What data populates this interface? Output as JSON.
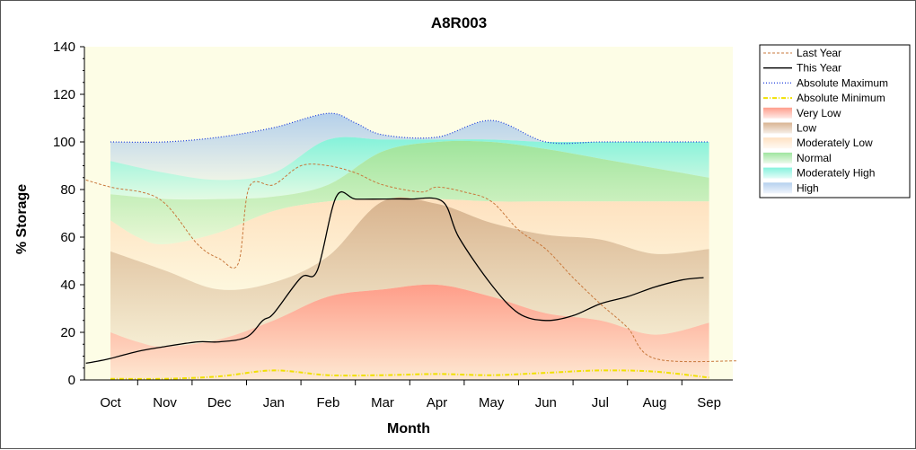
{
  "chart_data": {
    "type": "area",
    "title": "A8R003",
    "xlabel": "Month",
    "ylabel": "% Storage",
    "categories": [
      "Oct",
      "Nov",
      "Dec",
      "Jan",
      "Feb",
      "Mar",
      "Apr",
      "May",
      "Jun",
      "Jul",
      "Aug",
      "Sep"
    ],
    "ylim": [
      0,
      140
    ],
    "yticks": [
      0,
      20,
      40,
      60,
      80,
      100,
      120,
      140
    ],
    "legend_position": "right",
    "background_color": "#fdfde6",
    "bands": [
      {
        "name": "Very Low",
        "color": "#ff8c78",
        "lower": [
          [
            0,
            0
          ],
          [
            11,
            0
          ]
        ],
        "upper": [
          [
            0,
            20
          ],
          [
            0.5,
            16
          ],
          [
            1,
            14
          ],
          [
            2,
            17
          ],
          [
            3,
            25
          ],
          [
            4,
            35
          ],
          [
            5,
            38
          ],
          [
            6,
            40
          ],
          [
            7,
            35
          ],
          [
            8,
            28
          ],
          [
            9,
            25
          ],
          [
            10,
            19
          ],
          [
            11,
            24
          ]
        ]
      },
      {
        "name": "Low",
        "color": "#d2a67e",
        "upper": [
          [
            0,
            54
          ],
          [
            1,
            46
          ],
          [
            2,
            38
          ],
          [
            3,
            41
          ],
          [
            4,
            52
          ],
          [
            5,
            75
          ],
          [
            6,
            74
          ],
          [
            7,
            66
          ],
          [
            8,
            61
          ],
          [
            9,
            59
          ],
          [
            10,
            53
          ],
          [
            11,
            55
          ]
        ]
      },
      {
        "name": "Moderately Low",
        "color": "#ffdcb8",
        "upper": [
          [
            0,
            67
          ],
          [
            0.5,
            60
          ],
          [
            1,
            57
          ],
          [
            2,
            62
          ],
          [
            3,
            71
          ],
          [
            4,
            75
          ],
          [
            5,
            76
          ],
          [
            6,
            76
          ],
          [
            7,
            75
          ],
          [
            8,
            75
          ],
          [
            9,
            75
          ],
          [
            10,
            75
          ],
          [
            11,
            75
          ]
        ]
      },
      {
        "name": "Normal",
        "color": "#8ee08e",
        "upper": [
          [
            0,
            78
          ],
          [
            1,
            76
          ],
          [
            2,
            76
          ],
          [
            3,
            77
          ],
          [
            4,
            82
          ],
          [
            5,
            96
          ],
          [
            6,
            100
          ],
          [
            7,
            100
          ],
          [
            8,
            97
          ],
          [
            9,
            93
          ],
          [
            10,
            89
          ],
          [
            11,
            85
          ]
        ]
      },
      {
        "name": "Moderately High",
        "color": "#6ff0d8",
        "upper": [
          [
            0,
            92
          ],
          [
            1,
            87
          ],
          [
            2,
            84
          ],
          [
            3,
            87
          ],
          [
            4,
            101
          ],
          [
            5,
            101
          ],
          [
            6,
            101
          ],
          [
            7,
            101
          ],
          [
            8,
            100
          ],
          [
            9,
            100
          ],
          [
            10,
            100
          ],
          [
            11,
            100
          ]
        ]
      },
      {
        "name": "High",
        "color": "#a8c8ec",
        "upper": [
          [
            0,
            100
          ],
          [
            1,
            100
          ],
          [
            2,
            102
          ],
          [
            3,
            106
          ],
          [
            4,
            112
          ],
          [
            4.5,
            108
          ],
          [
            5,
            103
          ],
          [
            6,
            102
          ],
          [
            7,
            109
          ],
          [
            8,
            100
          ],
          [
            9,
            100
          ],
          [
            10,
            100
          ],
          [
            11,
            100
          ]
        ]
      }
    ],
    "series": [
      {
        "name": "Last Year",
        "color": "#c8783c",
        "style": "dashed",
        "points": [
          [
            -0.45,
            84
          ],
          [
            0,
            81
          ],
          [
            0.9,
            76
          ],
          [
            1.6,
            57
          ],
          [
            2,
            51
          ],
          [
            2.35,
            49
          ],
          [
            2.55,
            81
          ],
          [
            3,
            82
          ],
          [
            3.5,
            90
          ],
          [
            4,
            90
          ],
          [
            4.5,
            87
          ],
          [
            5,
            82
          ],
          [
            5.7,
            79
          ],
          [
            6,
            81
          ],
          [
            6.5,
            79
          ],
          [
            7,
            75
          ],
          [
            7.5,
            63
          ],
          [
            8,
            55
          ],
          [
            8.5,
            43
          ],
          [
            9,
            32
          ],
          [
            9.5,
            22
          ],
          [
            10,
            9
          ],
          [
            11.5,
            8
          ]
        ]
      },
      {
        "name": "This Year",
        "color": "#000000",
        "style": "solid",
        "points": [
          [
            -0.45,
            7
          ],
          [
            0,
            9
          ],
          [
            0.5,
            12
          ],
          [
            1,
            14
          ],
          [
            1.6,
            16
          ],
          [
            2,
            16
          ],
          [
            2.5,
            18
          ],
          [
            2.8,
            25
          ],
          [
            3,
            28
          ],
          [
            3.5,
            43
          ],
          [
            3.8,
            46
          ],
          [
            4.15,
            77
          ],
          [
            4.5,
            76
          ],
          [
            5,
            76
          ],
          [
            5.5,
            76
          ],
          [
            6.1,
            75
          ],
          [
            6.4,
            60
          ],
          [
            7,
            40
          ],
          [
            7.5,
            28
          ],
          [
            8,
            25
          ],
          [
            8.5,
            27
          ],
          [
            9,
            32
          ],
          [
            9.5,
            35
          ],
          [
            10,
            39
          ],
          [
            10.5,
            42
          ],
          [
            10.9,
            43
          ]
        ]
      },
      {
        "name": "Absolute Maximum",
        "color": "#1c3cdc",
        "style": "dotted",
        "points": [
          [
            0,
            100
          ],
          [
            1,
            100
          ],
          [
            2,
            102
          ],
          [
            3,
            106
          ],
          [
            4,
            112
          ],
          [
            4.5,
            108
          ],
          [
            5,
            103
          ],
          [
            6,
            102
          ],
          [
            7,
            109
          ],
          [
            8,
            100
          ],
          [
            9,
            100
          ],
          [
            10,
            100
          ],
          [
            11,
            100
          ]
        ]
      },
      {
        "name": "Absolute Minimum",
        "color": "#f0e000",
        "style": "dashdot",
        "points": [
          [
            0,
            0.5
          ],
          [
            1,
            0.5
          ],
          [
            2,
            1.5
          ],
          [
            3,
            4
          ],
          [
            4,
            2
          ],
          [
            5,
            2
          ],
          [
            6,
            2.5
          ],
          [
            7,
            2
          ],
          [
            8,
            3
          ],
          [
            9,
            4
          ],
          [
            10,
            3.5
          ],
          [
            11,
            1
          ]
        ]
      }
    ],
    "legend": [
      "Last Year",
      "This Year",
      "Absolute Maximum",
      "Absolute Minimum",
      "Very Low",
      "Low",
      "Moderately Low",
      "Normal",
      "Moderately High",
      "High"
    ]
  }
}
